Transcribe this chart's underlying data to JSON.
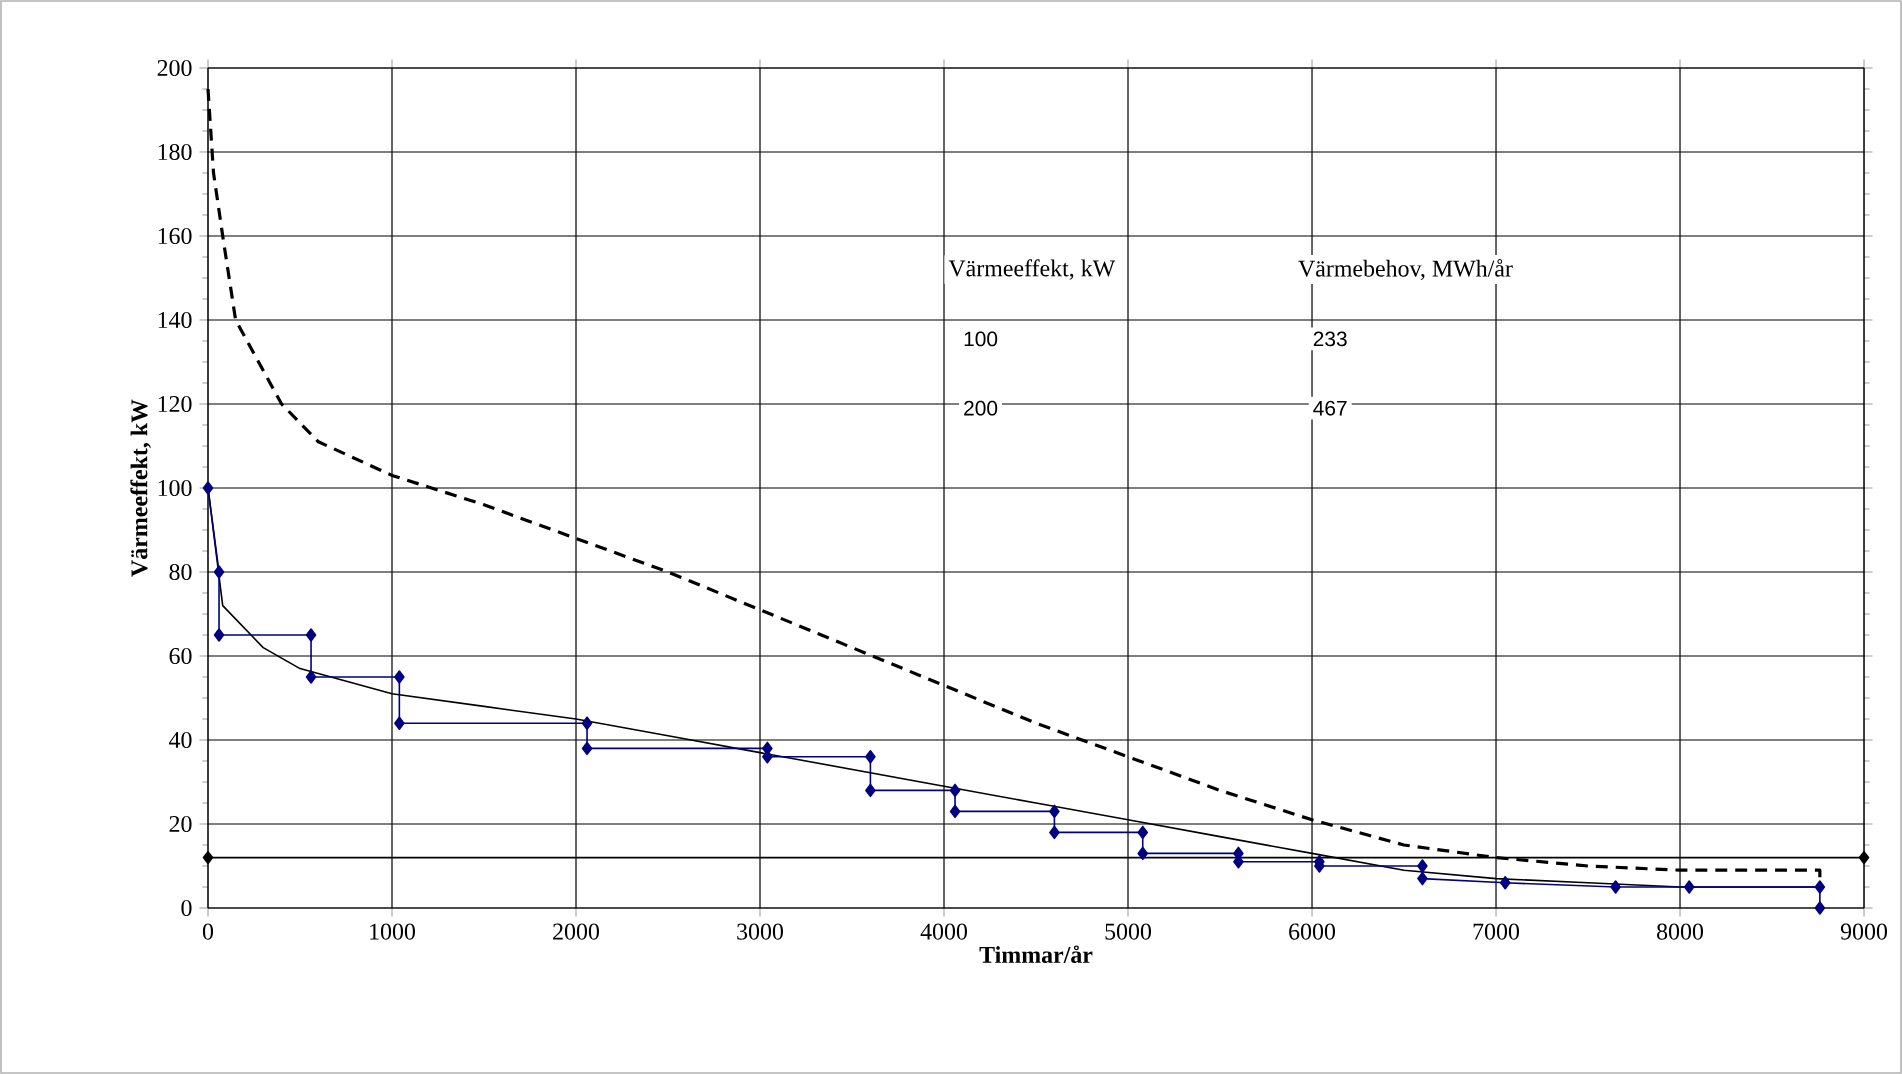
{
  "chart_data": {
    "type": "line",
    "xlabel": "Timmar/år",
    "ylabel": "Värmeeffekt, kW",
    "xlim": [
      0,
      9000
    ],
    "ylim": [
      0,
      200
    ],
    "xticks": [
      0,
      1000,
      2000,
      3000,
      4000,
      5000,
      6000,
      7000,
      8000,
      9000
    ],
    "yticks": [
      0,
      20,
      40,
      60,
      80,
      100,
      120,
      140,
      160,
      180,
      200
    ],
    "grid": true,
    "annotations": [
      "Värmeeffekt, kW",
      "Värmebehov, MWh/år",
      "100",
      "233",
      "200",
      "467"
    ],
    "series": [
      {
        "color": "#000000",
        "line_style": "dashed",
        "marker": "none",
        "x": [
          0,
          30,
          80,
          150,
          400,
          600,
          1000,
          1500,
          2000,
          2500,
          3000,
          3500,
          4000,
          4500,
          5000,
          5500,
          6000,
          6500,
          7000,
          7500,
          8000,
          8760,
          8760
        ],
        "values": [
          195,
          175,
          160,
          140,
          120,
          111,
          103,
          96,
          88,
          80,
          71,
          62,
          53,
          44,
          36,
          28,
          21,
          15,
          12,
          10,
          9,
          9,
          7
        ]
      },
      {
        "color": "#000000",
        "line_style": "solid",
        "marker": "none",
        "x": [
          0,
          80,
          300,
          500,
          1000,
          1500,
          2000,
          2500,
          3000,
          3500,
          4000,
          4500,
          5000,
          5500,
          6000,
          6500,
          7000,
          7500,
          8000,
          8760
        ],
        "values": [
          100,
          72,
          62,
          57,
          51,
          48,
          45,
          41,
          37,
          33,
          29,
          25,
          21,
          17,
          13,
          9,
          7,
          6,
          5,
          5
        ]
      },
      {
        "color": "#000080",
        "line_style": "solid",
        "marker": "diamond",
        "x": [
          0,
          60,
          60,
          560,
          560,
          1040,
          1040,
          2060,
          2060,
          3040,
          3040,
          3600,
          3600,
          4060,
          4060,
          4600,
          4600,
          5080,
          5080,
          5600,
          5600,
          6040,
          6040,
          6600,
          6600,
          7050,
          7650,
          8050,
          8760,
          8760
        ],
        "values": [
          100,
          80,
          65,
          65,
          55,
          55,
          44,
          44,
          38,
          38,
          36,
          36,
          28,
          28,
          23,
          23,
          18,
          18,
          13,
          13,
          11,
          11,
          10,
          10,
          7,
          6,
          5,
          5,
          5,
          0
        ]
      },
      {
        "color": "#000000",
        "line_style": "solid",
        "marker": "diamond",
        "x": [
          0,
          9000
        ],
        "values": [
          12,
          12
        ]
      }
    ]
  }
}
